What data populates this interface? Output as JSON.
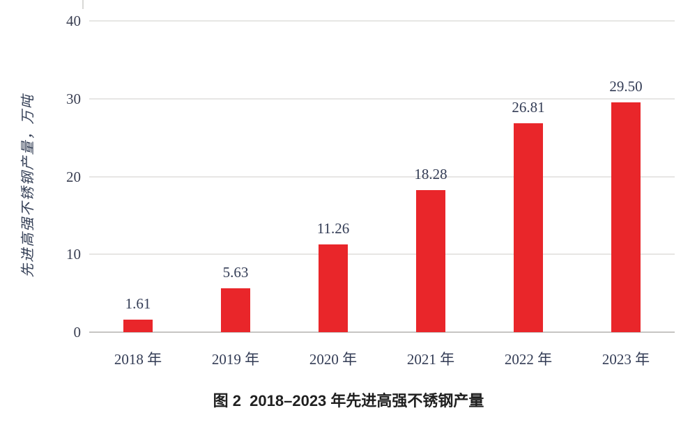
{
  "figure": {
    "caption": "图 2  2018–2023 年先进高强不锈钢产量"
  },
  "chart_data": {
    "type": "bar",
    "title": "图 2 2018–2023 年先进高强不锈钢产量",
    "categories": [
      "2018 年",
      "2019 年",
      "2020 年",
      "2021 年",
      "2022 年",
      "2023 年"
    ],
    "values": [
      1.61,
      5.63,
      11.26,
      18.28,
      26.81,
      29.5
    ],
    "value_labels": [
      "1.61",
      "5.63",
      "11.26",
      "18.28",
      "26.81",
      "29.50"
    ],
    "xlabel": "",
    "ylabel": "先进高强不锈钢产量，万吨",
    "ylim": [
      0,
      40
    ],
    "yticks": [
      0,
      10,
      20,
      30,
      40
    ],
    "grid": "horizontal gridlines on, light gray; darker baseline at 0",
    "legend": "none",
    "bar_color": "#e9262a",
    "label_color": "#333c55",
    "gridline_color": "#e7e6e4",
    "baseline_color": "#c6c5c3"
  }
}
